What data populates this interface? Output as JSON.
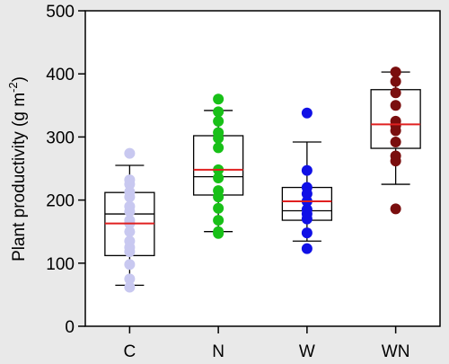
{
  "chart_data": {
    "type": "box",
    "ylabel_main": "Plant productivity (g m",
    "ylabel_sup": "-2",
    "ylabel_end": ")",
    "ylim": [
      0,
      500
    ],
    "yticks": [
      0,
      100,
      200,
      300,
      400,
      500
    ],
    "grid": false,
    "categories": [
      "C",
      "N",
      "W",
      "WN"
    ],
    "groups": [
      {
        "name": "C",
        "color": "#c8c8f0",
        "whisker_low": 65,
        "q1": 112,
        "median": 178,
        "q3": 212,
        "whisker_high": 255,
        "mean": 163,
        "points": [
          274,
          232,
          225,
          213,
          205,
          190,
          182,
          168,
          163,
          150,
          135,
          125,
          118,
          98,
          75,
          62
        ]
      },
      {
        "name": "N",
        "color": "#18c018",
        "whisker_low": 150,
        "q1": 208,
        "median": 237,
        "q3": 302,
        "whisker_high": 342,
        "mean": 248,
        "points": [
          360,
          340,
          325,
          307,
          298,
          283,
          248,
          235,
          215,
          205,
          187,
          168,
          150,
          147
        ]
      },
      {
        "name": "W",
        "color": "#1010e6",
        "whisker_low": 135,
        "q1": 168,
        "median": 183,
        "q3": 220,
        "whisker_high": 292,
        "mean": 198,
        "points": [
          338,
          247,
          220,
          210,
          198,
          185,
          178,
          170,
          148,
          123
        ]
      },
      {
        "name": "WN",
        "color": "#7a0e0e",
        "whisker_low": 225,
        "q1": 282,
        "median": 320,
        "q3": 375,
        "whisker_high": 403,
        "mean": 320,
        "points": [
          403,
          388,
          370,
          350,
          325,
          318,
          310,
          292,
          270,
          262,
          186
        ]
      }
    ],
    "mean_line_color": "#e02020"
  }
}
